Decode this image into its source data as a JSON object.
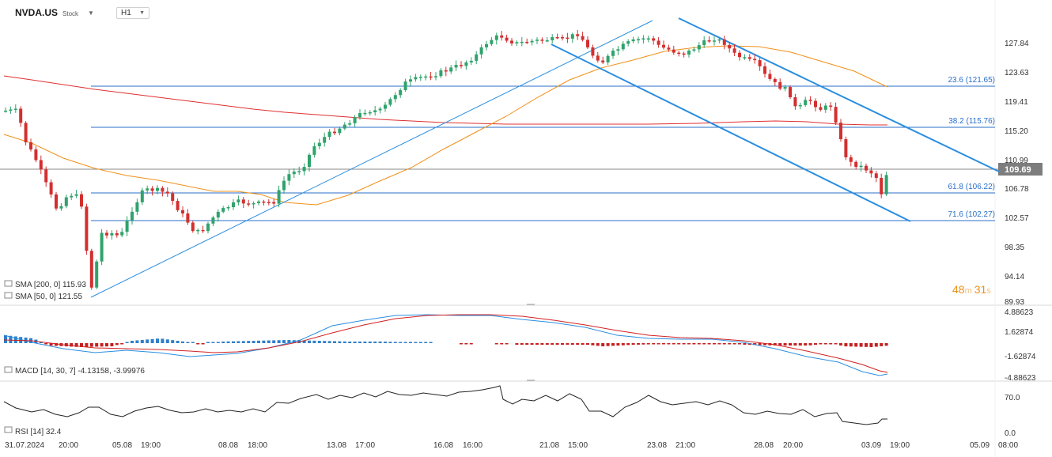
{
  "header": {
    "symbol": "NVDA.US",
    "type": "Stock",
    "timeframe": "H1"
  },
  "chart_data": {
    "type": "candlestick",
    "price_axis": [
      "127.84",
      "123.63",
      "119.41",
      "115.20",
      "110.99",
      "106.78",
      "102.57",
      "98.35",
      "94.14",
      "89.93"
    ],
    "current_price": "109.69",
    "fibonacci": [
      {
        "label": "23.6 (121.65)",
        "value": 121.65
      },
      {
        "label": "38.2 (115.76)",
        "value": 115.76
      },
      {
        "label": "61.8 (106.22)",
        "value": 106.22
      },
      {
        "label": "71.6 (102.27)",
        "value": 102.27
      }
    ],
    "sma_legend": [
      {
        "text": "SMA [200, 0] 115.93",
        "color": "#e03030"
      },
      {
        "text": "SMA [50, 0] 121.55",
        "color": "#f0901a"
      }
    ],
    "countdown": {
      "minutes": "48",
      "m": "m",
      "seconds": "31",
      "s": "s"
    },
    "macd": {
      "legend": "MACD [14, 30, 7] -4.13158, -3.99976",
      "axis": [
        "4.88623",
        "1.62874",
        "-1.62874",
        "-4.88623"
      ]
    },
    "rsi": {
      "legend": "RSI [14] 32.4",
      "axis": [
        "70.0",
        "0.0"
      ],
      "value": 32.4
    },
    "x_axis": [
      "31.07.2024",
      "20:00",
      "05.08",
      "19:00",
      "08.08",
      "18:00",
      "13.08",
      "17:00",
      "16.08",
      "16:00",
      "21.08",
      "15:00",
      "23.08",
      "21:00",
      "28.08",
      "20:00",
      "03.09",
      "19:00",
      "05.09",
      "08:00"
    ]
  }
}
